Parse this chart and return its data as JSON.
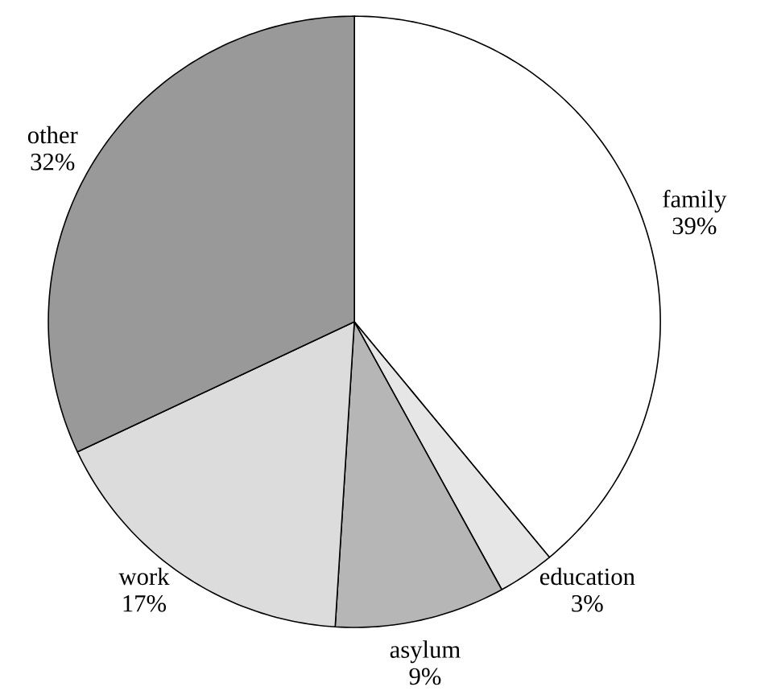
{
  "chart_data": {
    "type": "pie",
    "categories": [
      "family",
      "education",
      "asylum",
      "work",
      "other"
    ],
    "values": [
      39,
      3,
      9,
      17,
      32
    ],
    "value_labels": [
      "39%",
      "3%",
      "9%",
      "17%",
      "32%"
    ],
    "colors": [
      "#ffffff",
      "#e6e6e6",
      "#b6b6b6",
      "#dcdcdc",
      "#999999"
    ]
  }
}
